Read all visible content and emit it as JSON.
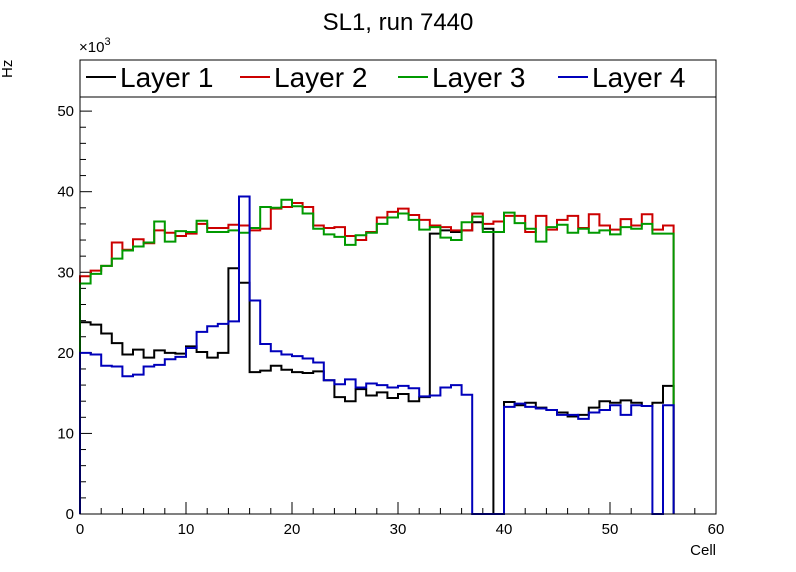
{
  "chart_data": {
    "type": "line",
    "title": "SL1, run 7440",
    "xlabel": "Cell",
    "ylabel": "Hz",
    "y_multiplier_label": "×10",
    "y_multiplier_exponent": "3",
    "xlim": [
      0,
      60
    ],
    "ylim": [
      0,
      52
    ],
    "x_ticks": [
      0,
      10,
      20,
      30,
      40,
      50,
      60
    ],
    "y_ticks": [
      0,
      10,
      20,
      30,
      40,
      50
    ],
    "grid": false,
    "legend_position": "top",
    "bin_edges_start": 0,
    "bin_width": 1,
    "series": [
      {
        "name": "Layer 1",
        "color": "#000000",
        "values": [
          23.8,
          23.5,
          22.4,
          21.2,
          19.8,
          20.4,
          19.4,
          20.3,
          20.0,
          19.9,
          20.8,
          20.1,
          19.4,
          20.0,
          30.5,
          28.7,
          17.6,
          17.8,
          18.4,
          17.9,
          17.6,
          17.5,
          17.7,
          16.6,
          14.5,
          14.0,
          15.5,
          14.7,
          15.1,
          14.4,
          14.9,
          14.0,
          14.5,
          34.8,
          35.2,
          35.0,
          35.2,
          36.2,
          35.4,
          0,
          13.9,
          13.5,
          13.8,
          13.2,
          12.9,
          12.6,
          12.1,
          12.3,
          13.2,
          14.0,
          13.8,
          14.1,
          13.8,
          13.4,
          13.8,
          15.9
        ]
      },
      {
        "name": "Layer 2",
        "color": "#cc0000",
        "values": [
          29.5,
          30.2,
          30.8,
          33.7,
          32.8,
          34.1,
          33.6,
          35.2,
          34.9,
          34.5,
          34.8,
          36.0,
          35.5,
          35.5,
          35.9,
          35.8,
          35.2,
          35.4,
          37.9,
          38.1,
          38.6,
          38.1,
          35.8,
          35.5,
          35.6,
          34.5,
          34.0,
          35.0,
          36.8,
          37.5,
          37.9,
          37.1,
          36.5,
          35.8,
          35.6,
          35.2,
          35.2,
          37.3,
          36.0,
          36.3,
          37.0,
          37.0,
          35.0,
          37.0,
          35.3,
          36.5,
          37.0,
          35.5,
          37.2,
          35.8,
          35.3,
          36.6,
          35.8,
          37.2,
          35.3,
          35.8
        ]
      },
      {
        "name": "Layer 3",
        "color": "#009900",
        "values": [
          28.6,
          29.8,
          30.8,
          31.7,
          32.7,
          33.2,
          33.7,
          36.3,
          33.8,
          35.1,
          35.0,
          36.4,
          35.0,
          35.0,
          35.2,
          34.9,
          35.5,
          38.1,
          38.0,
          39.0,
          38.2,
          37.3,
          35.4,
          34.7,
          34.4,
          33.4,
          34.6,
          34.9,
          36.0,
          36.8,
          37.3,
          36.5,
          35.3,
          35.6,
          34.3,
          34.0,
          36.2,
          36.9,
          35.0,
          35.0,
          37.4,
          36.1,
          35.4,
          33.8,
          35.6,
          35.9,
          34.9,
          35.4,
          34.9,
          35.2,
          34.7,
          35.6,
          35.4,
          36.0,
          34.8,
          34.8
        ]
      },
      {
        "name": "Layer 4",
        "color": "#0000bb",
        "values": [
          20.0,
          19.8,
          18.4,
          18.3,
          17.1,
          17.3,
          18.3,
          18.5,
          19.2,
          19.5,
          20.6,
          22.6,
          23.3,
          23.6,
          23.9,
          39.4,
          26.5,
          21.1,
          20.2,
          19.8,
          19.6,
          19.3,
          18.8,
          16.6,
          16.1,
          16.7,
          15.7,
          16.2,
          16.0,
          15.7,
          15.9,
          15.6,
          14.6,
          14.7,
          15.7,
          16.0,
          14.8,
          0,
          0,
          0,
          13.3,
          13.7,
          13.3,
          13.1,
          12.9,
          12.3,
          12.3,
          11.8,
          12.6,
          12.9,
          13.5,
          12.3,
          13.5,
          13.4,
          0,
          13.5
        ]
      }
    ]
  }
}
